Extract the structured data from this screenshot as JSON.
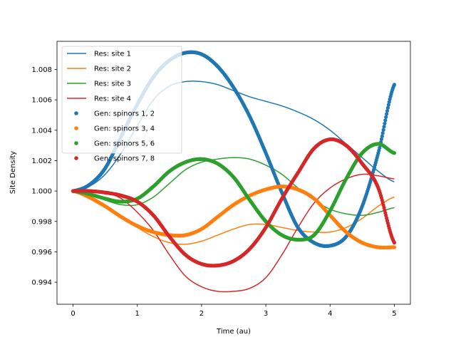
{
  "chart_data": {
    "type": "line",
    "title": "",
    "xlabel": "Time (au)",
    "ylabel": "Site Density",
    "xlim": [
      -0.25,
      5.25
    ],
    "ylim": [
      0.99255,
      1.00985
    ],
    "xticks": [
      0,
      1,
      2,
      3,
      4,
      5
    ],
    "yticks": [
      0.994,
      0.996,
      0.998,
      1.0,
      1.002,
      1.004,
      1.006,
      1.008
    ],
    "xtick_labels": [
      "0",
      "1",
      "2",
      "3",
      "4",
      "5"
    ],
    "ytick_labels": [
      "0.994",
      "0.996",
      "0.998",
      "1.000",
      "1.002",
      "1.004",
      "1.006",
      "1.008"
    ],
    "grid": false,
    "legend_position": "top-left",
    "x": [
      0,
      0.25,
      0.5,
      0.75,
      1.0,
      1.25,
      1.5,
      1.75,
      2.0,
      2.25,
      2.5,
      2.75,
      3.0,
      3.25,
      3.5,
      3.75,
      4.0,
      4.25,
      4.5,
      4.75,
      5.0
    ],
    "series": [
      {
        "name": "Res: site 1",
        "style": "line",
        "color": "#1f77b4",
        "values": [
          1.0,
          1.0003,
          1.0011,
          1.0025,
          1.0043,
          1.006,
          1.0069,
          1.0072,
          1.0072,
          1.007,
          1.0066,
          1.0062,
          1.0059,
          1.0056,
          1.0052,
          1.0047,
          1.004,
          1.0031,
          1.0022,
          1.0013,
          1.0006
        ]
      },
      {
        "name": "Res: site 2",
        "style": "line",
        "color": "#ff7f0e",
        "values": [
          1.0,
          0.9995,
          0.9989,
          0.9983,
          0.9976,
          0.997,
          0.9966,
          0.9965,
          0.9967,
          0.9971,
          0.9975,
          0.9978,
          0.9978,
          0.9976,
          0.9974,
          0.9973,
          0.9973,
          0.9976,
          0.9982,
          0.999,
          0.9996
        ]
      },
      {
        "name": "Res: site 3",
        "style": "line",
        "color": "#2ca02c",
        "values": [
          1.0,
          0.9998,
          0.9994,
          0.9991,
          0.9991,
          0.9996,
          1.0005,
          1.0014,
          1.0019,
          1.0021,
          1.0022,
          1.0021,
          1.0017,
          1.0011,
          1.0002,
          0.9994,
          0.9988,
          0.9985,
          0.9984,
          0.9986,
          0.9989
        ]
      },
      {
        "name": "Res: site 4",
        "style": "line",
        "color": "#d62728",
        "values": [
          1.0,
          1.0,
          0.9999,
          0.9995,
          0.9986,
          0.9974,
          0.9958,
          0.9944,
          0.9937,
          0.9934,
          0.9934,
          0.9936,
          0.9943,
          0.9958,
          0.9976,
          0.9992,
          1.0002,
          1.0008,
          1.0011,
          1.001,
          1.0008
        ]
      },
      {
        "name": "Gen: spinors 1, 2",
        "style": "dots",
        "color": "#1f77b4",
        "values": [
          1.0,
          1.0004,
          1.0015,
          1.0036,
          1.0057,
          1.0075,
          1.0086,
          1.0091,
          1.009,
          1.0082,
          1.0068,
          1.0049,
          1.0025,
          0.9999,
          0.9976,
          0.9966,
          0.9964,
          0.997,
          0.999,
          1.0025,
          1.007
        ]
      },
      {
        "name": "Gen: spinors 3, 4",
        "style": "dots",
        "color": "#ff7f0e",
        "values": [
          1.0,
          0.9996,
          0.999,
          0.9983,
          0.9977,
          0.9973,
          0.9971,
          0.9971,
          0.9975,
          0.9983,
          0.9991,
          0.9997,
          1.0001,
          1.0003,
          1.0001,
          0.9995,
          0.9984,
          0.9973,
          0.9966,
          0.9963,
          0.9963
        ]
      },
      {
        "name": "Gen: spinors 5, 6",
        "style": "dots",
        "color": "#2ca02c",
        "values": [
          1.0,
          0.9998,
          0.9995,
          0.9993,
          0.9995,
          1.0003,
          1.0013,
          1.0019,
          1.0021,
          1.0018,
          1.0009,
          0.9994,
          0.998,
          0.9971,
          0.9968,
          0.9971,
          0.9987,
          1.0008,
          1.0025,
          1.0031,
          1.0025
        ]
      },
      {
        "name": "Gen: spinors 7, 8",
        "style": "dots",
        "color": "#d62728",
        "values": [
          1.0,
          1.0,
          0.9999,
          0.9997,
          0.9993,
          0.9984,
          0.997,
          0.9958,
          0.9952,
          0.9951,
          0.9954,
          0.9962,
          0.9976,
          0.9995,
          1.0012,
          1.0028,
          1.0034,
          1.003,
          1.0018,
          1.0002,
          0.9966
        ]
      }
    ]
  }
}
